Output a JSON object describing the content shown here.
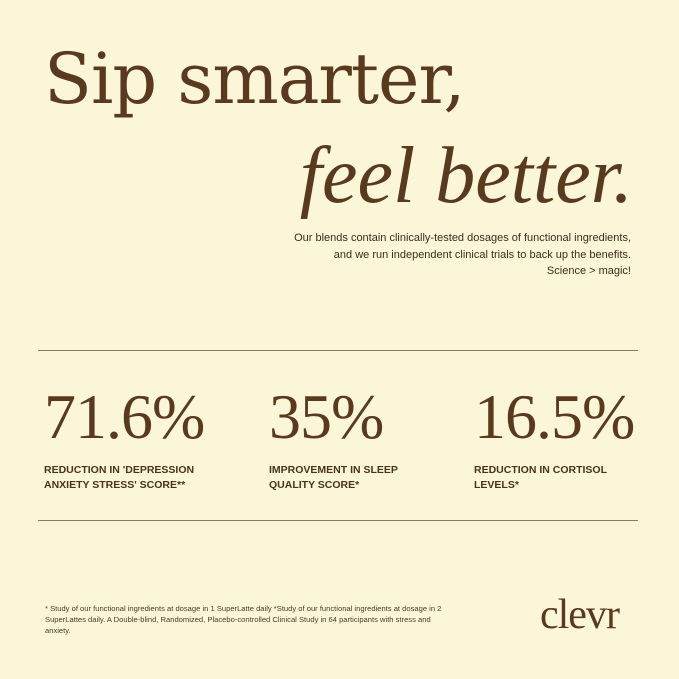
{
  "headline": {
    "line1": "Sip smarter,",
    "line2": "feel better."
  },
  "intro": {
    "line1": "Our blends contain clinically-tested dosages of functional ingredients,",
    "line2": "and we run independent clinical trials to back up the benefits.",
    "line3": "Science > magic!"
  },
  "stats": [
    {
      "value": "71.6%",
      "label": "Reduction in 'Depression Anxiety Stress' Score**"
    },
    {
      "value": "35%",
      "label": "Improvement in sleep quality score*"
    },
    {
      "value": "16.5%",
      "label": "Reduction in cortisol levels*"
    }
  ],
  "footnote": "* Study of our functional ingredients at dosage in 1 SuperLatte daily *Study of our functional ingredients at dosage in 2 SuperLattes daily. A Double-blind, Randomized, Placebo-controlled Clinical Study in 64 participants with stress and anxiety.",
  "brand": {
    "logo": "clevr"
  },
  "colors": {
    "background": "#fcf6d9",
    "brown": "#5a3a1f"
  }
}
